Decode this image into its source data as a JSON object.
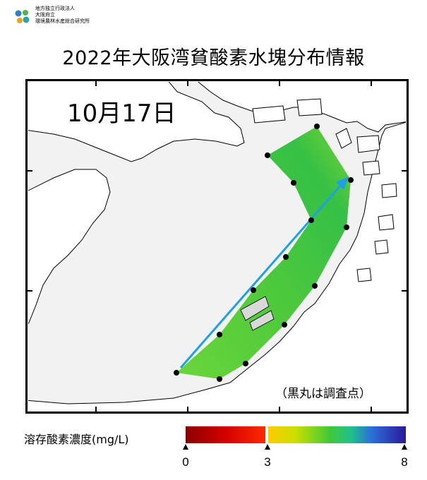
{
  "org": {
    "lines": [
      "地方独立行政法人",
      "大阪府立",
      "環境農林水産総合研究所"
    ]
  },
  "title": "2022年大阪湾貧酸素水塊分布情報",
  "map": {
    "date_label": "10月17日",
    "note": "（黒丸は調査点）",
    "colors": {
      "land": "#ffffff",
      "sea": "#f2f2f2",
      "coast": "#000000",
      "arrow": "#1ea0e6",
      "station": "#000000"
    },
    "icons": [
      "station-dot-icon",
      "survey-direction-arrow-icon"
    ]
  },
  "legend": {
    "title": "溶存酸素濃度(mg/L)",
    "min": 0,
    "break": 3,
    "max": 8,
    "tick_labels": [
      "0",
      "3",
      "8"
    ]
  }
}
